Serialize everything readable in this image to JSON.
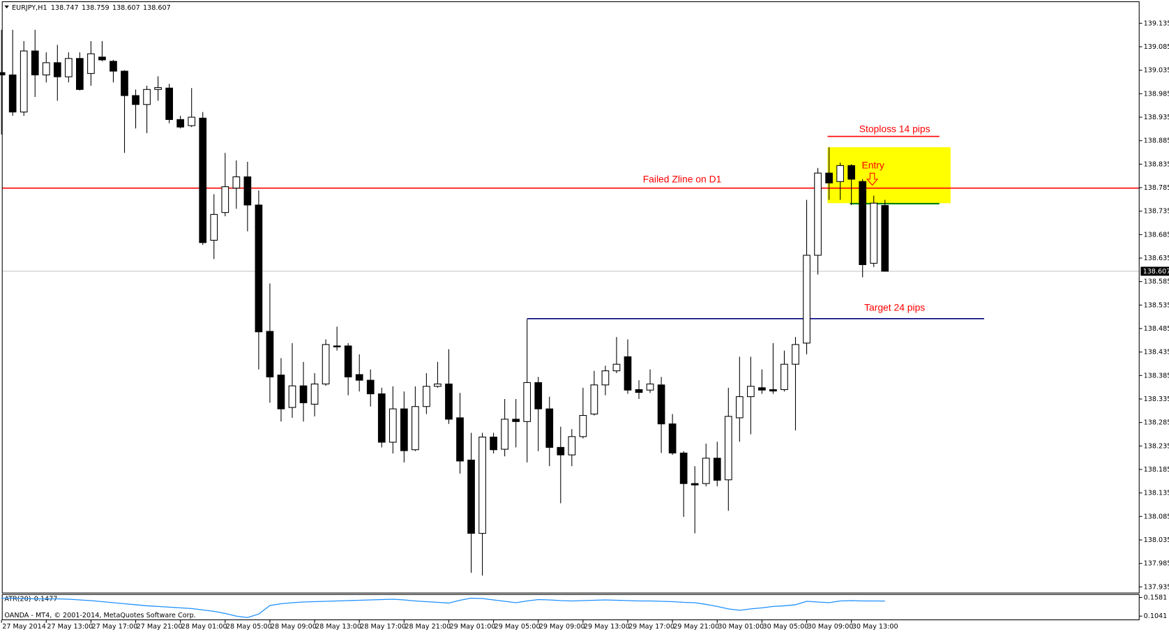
{
  "chart_data": {
    "type": "candlestick",
    "title": "EURJPY,H1",
    "categories": [
      "27 May 2014",
      null,
      null,
      null,
      "27 May 13:00",
      null,
      null,
      null,
      "27 May 17:00",
      null,
      null,
      null,
      "27 May 21:00",
      null,
      null,
      null,
      "28 May 01:00",
      null,
      null,
      null,
      "28 May 05:00",
      null,
      null,
      null,
      "28 May 09:00",
      null,
      null,
      null,
      "28 May 13:00",
      null,
      null,
      null,
      "28 May 17:00",
      null,
      null,
      null,
      "28 May 21:00",
      null,
      null,
      null,
      "29 May 01:00",
      null,
      null,
      null,
      "29 May 05:00",
      null,
      null,
      null,
      "29 May 09:00",
      null,
      null,
      null,
      "29 May 13:00",
      null,
      null,
      null,
      "29 May 17:00",
      null,
      null,
      null,
      "29 May 21:00",
      null,
      null,
      null,
      "30 May 01:00",
      null,
      null,
      null,
      "30 May 05:00",
      null,
      null,
      null,
      "30 May 09:00",
      null,
      null,
      null,
      "30 May 13:00",
      null,
      null,
      null
    ],
    "open": [
      139.03,
      139.025,
      138.946,
      139.076,
      139.025,
      139.051,
      139.021,
      139.06,
      139.028,
      139.063,
      139.054,
      139.033,
      138.981,
      138.962,
      138.994,
      138.997,
      138.93,
      138.917,
      138.933,
      138.673,
      138.732,
      138.784,
      138.808,
      138.748,
      138.479,
      138.386,
      138.317,
      138.363,
      138.324,
      138.367,
      138.448,
      138.448,
      138.387,
      138.375,
      138.346,
      138.243,
      138.314,
      138.227,
      138.319,
      138.362,
      138.367,
      138.295,
      138.205,
      138.049,
      138.254,
      138.228,
      138.292,
      138.287,
      138.37,
      138.314,
      138.232,
      138.216,
      138.255,
      138.303,
      138.365,
      138.395,
      138.425,
      138.355,
      138.354,
      138.365,
      138.282,
      138.22,
      138.155,
      138.155,
      138.209,
      138.163,
      138.295,
      138.34,
      138.359,
      138.355,
      138.355,
      138.409,
      138.454,
      138.641,
      138.816,
      138.798,
      138.832,
      138.798,
      138.624,
      138.747
    ],
    "high": [
      139.121,
      139.121,
      139.097,
      139.121,
      139.073,
      139.089,
      139.073,
      139.073,
      139.097,
      139.097,
      139.057,
      139.035,
      138.994,
      139.002,
      139.022,
      139.006,
      138.938,
      138.997,
      138.946,
      138.771,
      138.859,
      138.843,
      138.84,
      138.779,
      138.581,
      138.422,
      138.454,
      138.414,
      138.39,
      138.462,
      138.489,
      138.454,
      138.43,
      138.398,
      138.359,
      138.362,
      138.351,
      138.362,
      138.39,
      138.414,
      138.441,
      138.348,
      138.263,
      138.263,
      138.263,
      138.335,
      138.335,
      138.505,
      138.382,
      138.34,
      138.276,
      138.271,
      138.359,
      138.395,
      138.406,
      138.467,
      138.462,
      138.375,
      138.398,
      138.382,
      138.303,
      138.224,
      138.192,
      138.24,
      138.244,
      138.359,
      138.425,
      138.425,
      138.398,
      138.454,
      138.438,
      138.467,
      138.759,
      138.827,
      138.871,
      138.838,
      138.835,
      138.803,
      138.768,
      138.759
    ],
    "low": [
      138.898,
      138.938,
      138.938,
      138.978,
      139.009,
      138.97,
      139.009,
      138.992,
      139.002,
      139.054,
      139.009,
      138.859,
      138.911,
      138.901,
      138.97,
      138.922,
      138.911,
      138.914,
      138.663,
      138.633,
      138.724,
      138.74,
      138.692,
      138.398,
      138.327,
      138.287,
      138.295,
      138.287,
      138.298,
      138.363,
      138.438,
      138.343,
      138.351,
      138.319,
      138.232,
      138.219,
      138.2,
      138.224,
      138.303,
      138.359,
      138.282,
      138.176,
      137.965,
      137.959,
      138.219,
      138.213,
      138.232,
      138.2,
      138.224,
      138.192,
      138.113,
      138.192,
      138.251,
      138.3,
      138.343,
      138.39,
      138.346,
      138.335,
      138.348,
      138.22,
      138.216,
      138.084,
      138.049,
      138.149,
      138.149,
      138.097,
      138.244,
      138.26,
      138.346,
      138.346,
      138.351,
      138.268,
      138.43,
      138.6,
      138.759,
      138.759,
      138.748,
      138.594,
      138.616,
      138.607
    ],
    "close": [
      139.025,
      138.946,
      139.076,
      139.025,
      139.051,
      139.021,
      139.06,
      138.994,
      139.07,
      139.057,
      139.033,
      138.981,
      138.962,
      138.994,
      138.998,
      138.93,
      138.914,
      138.935,
      138.668,
      138.728,
      138.787,
      138.808,
      138.748,
      138.478,
      138.382,
      138.314,
      138.363,
      138.327,
      138.367,
      138.451,
      138.446,
      138.382,
      138.375,
      138.346,
      138.243,
      138.314,
      138.225,
      138.319,
      138.362,
      138.367,
      138.292,
      138.203,
      138.049,
      138.254,
      138.227,
      138.292,
      138.287,
      138.37,
      138.314,
      138.232,
      138.216,
      138.255,
      138.3,
      138.365,
      138.395,
      138.409,
      138.354,
      138.349,
      138.367,
      138.282,
      138.22,
      138.155,
      138.152,
      138.209,
      138.162,
      138.298,
      138.34,
      138.362,
      138.354,
      138.352,
      138.409,
      138.451,
      138.641,
      138.816,
      138.795,
      138.832,
      138.803,
      138.621,
      138.752,
      138.607
    ],
    "up_color": "#ffffff",
    "down_color": "#000000",
    "ylim": [
      137.922,
      139.184
    ],
    "yticks": [
      139.135,
      139.085,
      139.035,
      138.985,
      138.935,
      138.885,
      138.835,
      138.785,
      138.735,
      138.685,
      138.635,
      138.585,
      138.535,
      138.485,
      138.435,
      138.385,
      138.335,
      138.285,
      138.235,
      138.185,
      138.135,
      138.085,
      138.035,
      137.985,
      137.935
    ],
    "bid": 138.607,
    "bid_line_color": "#c0c0c0",
    "annotations": [
      {
        "text": "Failed Zline on D1",
        "value": 138.784,
        "color": "#ff0000"
      },
      {
        "text": "Stoploss 14 pips",
        "value": 138.894,
        "color": "#ff0000"
      },
      {
        "text": "Target 24 pips",
        "value": 138.506,
        "color": "#000080"
      }
    ],
    "zone": [
      138.752,
      138.871
    ],
    "zone_color": "#ffff00",
    "entry_label": "Entry",
    "entry_line": 138.751,
    "entry_line_color": "#008000",
    "atr": {
      "label": "ATR(20)",
      "color": "#1e90ff",
      "values": [
        0.156,
        0.156,
        0.155,
        0.154,
        0.154,
        0.154,
        0.153,
        0.151,
        0.149,
        0.146,
        0.143,
        0.14,
        0.137,
        0.134,
        0.132,
        0.13,
        0.128,
        0.126,
        0.122,
        0.118,
        0.112,
        0.104,
        0.1,
        0.11,
        0.135,
        0.14,
        0.143,
        0.145,
        0.146,
        0.147,
        0.148,
        0.149,
        0.15,
        0.151,
        0.152,
        0.153,
        0.151,
        0.148,
        0.146,
        0.144,
        0.142,
        0.15,
        0.156,
        0.155,
        0.151,
        0.147,
        0.143,
        0.148,
        0.152,
        0.151,
        0.149,
        0.148,
        0.149,
        0.15,
        0.151,
        0.15,
        0.149,
        0.148,
        0.148,
        0.147,
        0.146,
        0.144,
        0.143,
        0.138,
        0.132,
        0.125,
        0.121,
        0.125,
        0.128,
        0.132,
        0.134,
        0.137,
        0.147,
        0.145,
        0.143,
        0.148,
        0.149,
        0.148,
        0.148,
        0.1477
      ],
      "ylim": [
        0.0955,
        0.1667
      ],
      "yticks": [
        0.1581,
        0.1041
      ]
    },
    "footer": "OANDA - MT4, © 2001-2014, MetaQuotes Software Corp."
  }
}
